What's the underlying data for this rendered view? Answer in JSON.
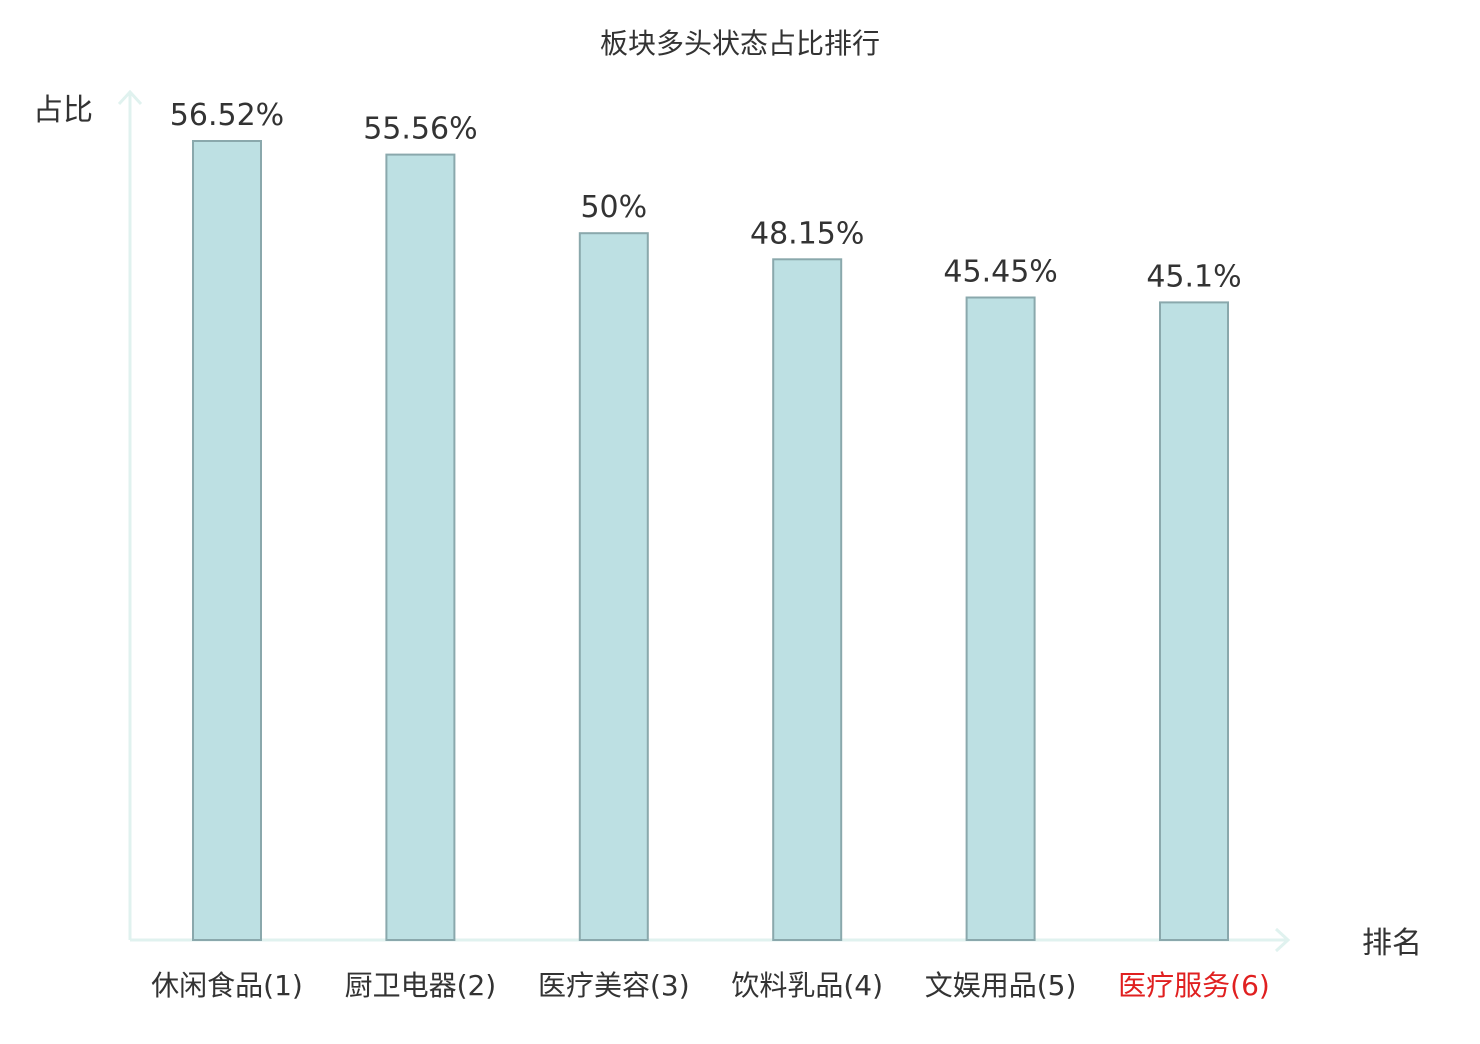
{
  "chart_data": {
    "type": "bar",
    "title": "板块多头状态占比排行",
    "ylabel": "占比",
    "xlabel": "排名",
    "categories": [
      "休闲食品(1)",
      "厨卫电器(2)",
      "医疗美容(3)",
      "饮料乳品(4)",
      "文娱用品(5)",
      "医疗服务(6)"
    ],
    "values": [
      56.52,
      55.56,
      50,
      48.15,
      45.45,
      45.1
    ],
    "value_labels": [
      "56.52%",
      "55.56%",
      "50%",
      "48.15%",
      "45.45%",
      "45.1%"
    ],
    "ylim": [
      0,
      56.52
    ],
    "grid": false,
    "highlight_category_index": 5,
    "colors": {
      "bar_fill": "#bde0e3",
      "bar_stroke": "#8aa8ac",
      "axis": "#e0f2ef",
      "text": "#333333",
      "highlight_text": "#e02020"
    }
  }
}
